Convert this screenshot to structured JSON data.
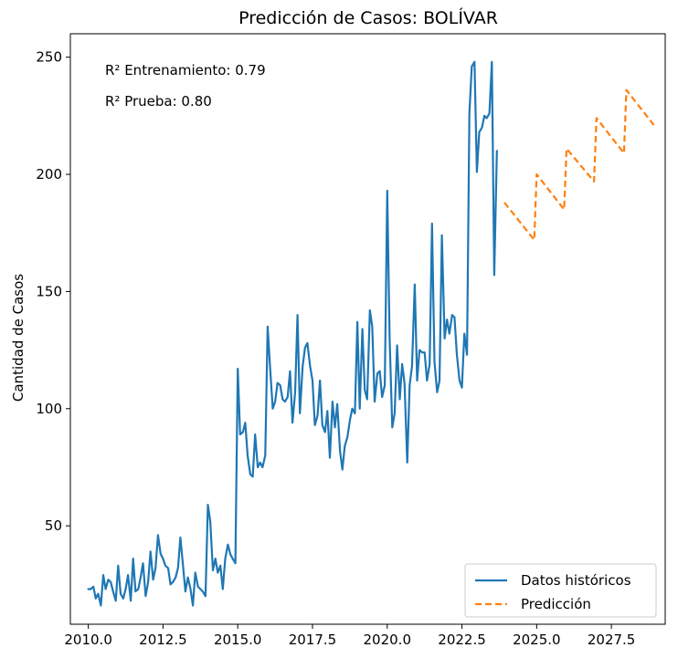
{
  "chart_data": {
    "type": "line",
    "title": "Predicción de Casos: BOLÍVAR",
    "xlabel": "",
    "ylabel": "Cantidad de Casos",
    "xlim": [
      2009.4,
      2029.3
    ],
    "ylim": [
      8,
      260
    ],
    "x_ticks": [
      2010,
      2012.5,
      2015,
      2017.5,
      2020,
      2022.5,
      2025,
      2027.5
    ],
    "x_tick_labels": [
      "2010.0",
      "2012.5",
      "2015.0",
      "2017.5",
      "2020.0",
      "2022.5",
      "2025.0",
      "2027.5"
    ],
    "y_ticks": [
      50,
      100,
      150,
      200,
      250
    ],
    "y_tick_labels": [
      "50",
      "100",
      "150",
      "200",
      "250"
    ],
    "annotations": [
      "R² Entrenamiento: 0.79",
      "R² Prueba: 0.80"
    ],
    "legend_position": "lower-right",
    "grid": false,
    "series": [
      {
        "name": "Datos históricos",
        "color": "#1f77b4",
        "style": "solid",
        "points": [
          [
            2010.0,
            23
          ],
          [
            2010.08,
            23
          ],
          [
            2010.17,
            24
          ],
          [
            2010.25,
            19
          ],
          [
            2010.33,
            21
          ],
          [
            2010.42,
            16
          ],
          [
            2010.5,
            29
          ],
          [
            2010.58,
            23
          ],
          [
            2010.67,
            27
          ],
          [
            2010.75,
            26
          ],
          [
            2010.83,
            22
          ],
          [
            2010.92,
            18
          ],
          [
            2011.0,
            33
          ],
          [
            2011.08,
            21
          ],
          [
            2011.17,
            19
          ],
          [
            2011.25,
            23
          ],
          [
            2011.33,
            29
          ],
          [
            2011.42,
            18
          ],
          [
            2011.5,
            36
          ],
          [
            2011.58,
            22
          ],
          [
            2011.67,
            23
          ],
          [
            2011.75,
            28
          ],
          [
            2011.83,
            34
          ],
          [
            2011.92,
            20
          ],
          [
            2012.0,
            26
          ],
          [
            2012.08,
            39
          ],
          [
            2012.17,
            27
          ],
          [
            2012.25,
            32
          ],
          [
            2012.33,
            46
          ],
          [
            2012.42,
            38
          ],
          [
            2012.5,
            36
          ],
          [
            2012.58,
            33
          ],
          [
            2012.67,
            32
          ],
          [
            2012.75,
            25
          ],
          [
            2012.83,
            26
          ],
          [
            2012.92,
            28
          ],
          [
            2013.0,
            32
          ],
          [
            2013.08,
            45
          ],
          [
            2013.17,
            33
          ],
          [
            2013.25,
            22
          ],
          [
            2013.33,
            28
          ],
          [
            2013.42,
            23
          ],
          [
            2013.5,
            16
          ],
          [
            2013.58,
            30
          ],
          [
            2013.67,
            24
          ],
          [
            2013.75,
            23
          ],
          [
            2013.83,
            22
          ],
          [
            2013.92,
            20
          ],
          [
            2014.0,
            59
          ],
          [
            2014.08,
            52
          ],
          [
            2014.17,
            31
          ],
          [
            2014.25,
            36
          ],
          [
            2014.33,
            30
          ],
          [
            2014.42,
            33
          ],
          [
            2014.5,
            23
          ],
          [
            2014.58,
            36
          ],
          [
            2014.67,
            42
          ],
          [
            2014.75,
            38
          ],
          [
            2014.83,
            36
          ],
          [
            2014.92,
            34
          ],
          [
            2015.0,
            117
          ],
          [
            2015.08,
            89
          ],
          [
            2015.17,
            90
          ],
          [
            2015.25,
            94
          ],
          [
            2015.33,
            80
          ],
          [
            2015.42,
            72
          ],
          [
            2015.5,
            71
          ],
          [
            2015.58,
            89
          ],
          [
            2015.67,
            75
          ],
          [
            2015.75,
            77
          ],
          [
            2015.83,
            75
          ],
          [
            2015.92,
            80
          ],
          [
            2016.0,
            135
          ],
          [
            2016.08,
            118
          ],
          [
            2016.17,
            100
          ],
          [
            2016.25,
            103
          ],
          [
            2016.33,
            111
          ],
          [
            2016.42,
            110
          ],
          [
            2016.5,
            104
          ],
          [
            2016.58,
            103
          ],
          [
            2016.67,
            105
          ],
          [
            2016.75,
            116
          ],
          [
            2016.83,
            94
          ],
          [
            2016.92,
            107
          ],
          [
            2017.0,
            140
          ],
          [
            2017.08,
            98
          ],
          [
            2017.17,
            118
          ],
          [
            2017.25,
            126
          ],
          [
            2017.33,
            128
          ],
          [
            2017.42,
            118
          ],
          [
            2017.5,
            112
          ],
          [
            2017.58,
            93
          ],
          [
            2017.67,
            97
          ],
          [
            2017.75,
            112
          ],
          [
            2017.83,
            93
          ],
          [
            2017.92,
            90
          ],
          [
            2018.0,
            99
          ],
          [
            2018.08,
            79
          ],
          [
            2018.17,
            103
          ],
          [
            2018.25,
            92
          ],
          [
            2018.33,
            102
          ],
          [
            2018.42,
            82
          ],
          [
            2018.5,
            74
          ],
          [
            2018.58,
            84
          ],
          [
            2018.67,
            88
          ],
          [
            2018.75,
            95
          ],
          [
            2018.83,
            100
          ],
          [
            2018.92,
            98
          ],
          [
            2019.0,
            137
          ],
          [
            2019.08,
            100
          ],
          [
            2019.17,
            134
          ],
          [
            2019.25,
            108
          ],
          [
            2019.33,
            104
          ],
          [
            2019.42,
            142
          ],
          [
            2019.5,
            135
          ],
          [
            2019.58,
            103
          ],
          [
            2019.67,
            115
          ],
          [
            2019.75,
            116
          ],
          [
            2019.83,
            105
          ],
          [
            2019.92,
            110
          ],
          [
            2020.0,
            193
          ],
          [
            2020.08,
            130
          ],
          [
            2020.17,
            92
          ],
          [
            2020.25,
            98
          ],
          [
            2020.33,
            127
          ],
          [
            2020.42,
            104
          ],
          [
            2020.5,
            119
          ],
          [
            2020.58,
            111
          ],
          [
            2020.67,
            77
          ],
          [
            2020.75,
            110
          ],
          [
            2020.83,
            118
          ],
          [
            2020.92,
            153
          ],
          [
            2021.0,
            112
          ],
          [
            2021.08,
            125
          ],
          [
            2021.17,
            124
          ],
          [
            2021.25,
            124
          ],
          [
            2021.33,
            112
          ],
          [
            2021.42,
            119
          ],
          [
            2021.5,
            179
          ],
          [
            2021.58,
            120
          ],
          [
            2021.67,
            107
          ],
          [
            2021.75,
            112
          ],
          [
            2021.83,
            174
          ],
          [
            2021.92,
            130
          ],
          [
            2022.0,
            138
          ],
          [
            2022.08,
            132
          ],
          [
            2022.17,
            140
          ],
          [
            2022.25,
            139
          ],
          [
            2022.33,
            123
          ],
          [
            2022.42,
            112
          ],
          [
            2022.5,
            109
          ],
          [
            2022.58,
            132
          ],
          [
            2022.67,
            123
          ],
          [
            2022.75,
            226
          ],
          [
            2022.83,
            246
          ],
          [
            2022.92,
            248
          ],
          [
            2023.0,
            201
          ],
          [
            2023.08,
            218
          ],
          [
            2023.17,
            220
          ],
          [
            2023.25,
            225
          ],
          [
            2023.33,
            224
          ],
          [
            2023.42,
            226
          ],
          [
            2023.5,
            248
          ],
          [
            2023.58,
            157
          ],
          [
            2023.67,
            210
          ]
        ]
      },
      {
        "name": "Predicción",
        "color": "#ff7f0e",
        "style": "dashed",
        "points": [
          [
            2023.92,
            188
          ],
          [
            2024.92,
            172
          ],
          [
            2025.0,
            200
          ],
          [
            2025.92,
            185
          ],
          [
            2026.0,
            211
          ],
          [
            2026.92,
            197
          ],
          [
            2027.0,
            224
          ],
          [
            2027.92,
            209
          ],
          [
            2028.0,
            236
          ],
          [
            2028.92,
            221
          ]
        ]
      }
    ]
  }
}
